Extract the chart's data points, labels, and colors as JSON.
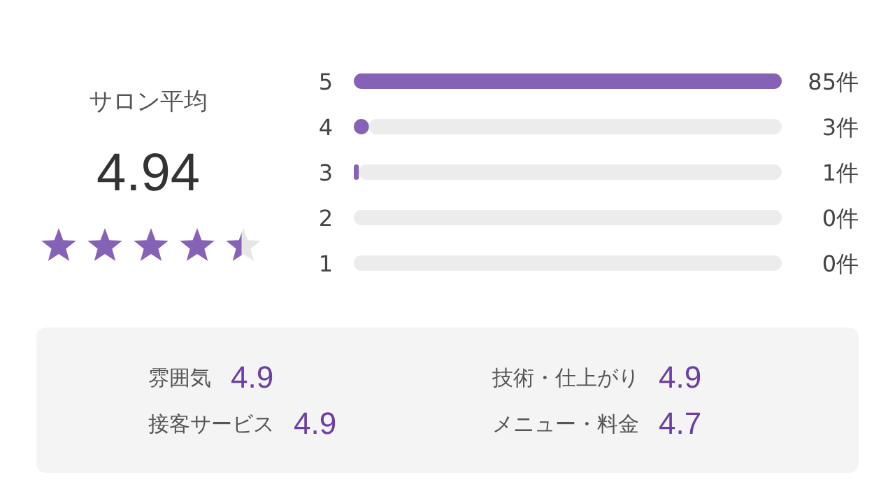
{
  "chart_data": [
    {
      "type": "other",
      "title": "サロン平均",
      "annotations": [
        "4.94"
      ]
    },
    {
      "type": "bar",
      "orientation": "horizontal",
      "stacked": true,
      "categories": [
        "5",
        "4",
        "3",
        "2",
        "1"
      ],
      "series": [
        {
          "color": "#8662b6",
          "values": [
            85,
            3,
            1,
            0,
            0
          ],
          "value_labels": [
            "85件",
            "3件",
            "1件",
            "0件",
            "0件"
          ]
        },
        {
          "color": "#ececec",
          "values": [
            0,
            82,
            84,
            85,
            85
          ]
        }
      ]
    },
    {
      "type": "other",
      "categories": [
        "雰囲気",
        "技術・仕上がり",
        "接客サービス",
        "メニュー・料金"
      ],
      "values": [
        4.9,
        4.9,
        4.9,
        4.7
      ],
      "data_labels": true
    }
  ]
}
